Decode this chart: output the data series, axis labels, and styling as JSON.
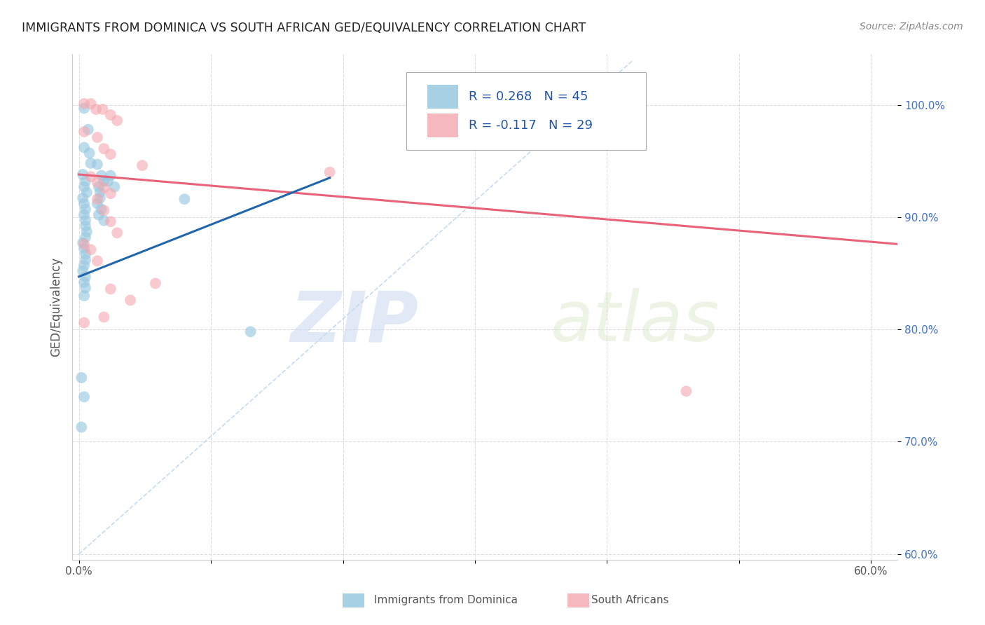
{
  "title": "IMMIGRANTS FROM DOMINICA VS SOUTH AFRICAN GED/EQUIVALENCY CORRELATION CHART",
  "source": "Source: ZipAtlas.com",
  "ylabel_label": "GED/Equivalency",
  "x_ticks": [
    0.0,
    0.1,
    0.2,
    0.3,
    0.4,
    0.5,
    0.6
  ],
  "x_tick_labels": [
    "0.0%",
    "",
    "",
    "",
    "",
    "",
    "60.0%"
  ],
  "y_ticks": [
    0.6,
    0.7,
    0.8,
    0.9,
    1.0
  ],
  "y_tick_labels": [
    "60.0%",
    "70.0%",
    "80.0%",
    "90.0%",
    "100.0%"
  ],
  "xlim": [
    -0.005,
    0.62
  ],
  "ylim": [
    0.595,
    1.045
  ],
  "blue_color": "#92c5de",
  "pink_color": "#f4a7b0",
  "blue_line_color": "#2166ac",
  "pink_line_color": "#e8637a",
  "diagonal_line_color": "#c0d8ee",
  "background_color": "#ffffff",
  "grid_color": "#dddddd",
  "watermark_zip": "ZIP",
  "watermark_atlas": "atlas",
  "blue_dots": [
    [
      0.004,
      0.997
    ],
    [
      0.007,
      0.978
    ],
    [
      0.004,
      0.962
    ],
    [
      0.008,
      0.957
    ],
    [
      0.009,
      0.948
    ],
    [
      0.003,
      0.938
    ],
    [
      0.005,
      0.932
    ],
    [
      0.004,
      0.927
    ],
    [
      0.006,
      0.922
    ],
    [
      0.003,
      0.917
    ],
    [
      0.004,
      0.912
    ],
    [
      0.005,
      0.907
    ],
    [
      0.004,
      0.902
    ],
    [
      0.005,
      0.897
    ],
    [
      0.005,
      0.892
    ],
    [
      0.006,
      0.887
    ],
    [
      0.005,
      0.882
    ],
    [
      0.003,
      0.877
    ],
    [
      0.004,
      0.872
    ],
    [
      0.005,
      0.867
    ],
    [
      0.005,
      0.862
    ],
    [
      0.004,
      0.857
    ],
    [
      0.003,
      0.852
    ],
    [
      0.005,
      0.847
    ],
    [
      0.004,
      0.842
    ],
    [
      0.005,
      0.837
    ],
    [
      0.004,
      0.83
    ],
    [
      0.014,
      0.947
    ],
    [
      0.017,
      0.937
    ],
    [
      0.019,
      0.932
    ],
    [
      0.015,
      0.927
    ],
    [
      0.016,
      0.922
    ],
    [
      0.016,
      0.917
    ],
    [
      0.014,
      0.912
    ],
    [
      0.017,
      0.907
    ],
    [
      0.015,
      0.902
    ],
    [
      0.019,
      0.897
    ],
    [
      0.024,
      0.937
    ],
    [
      0.022,
      0.932
    ],
    [
      0.027,
      0.927
    ],
    [
      0.08,
      0.916
    ],
    [
      0.13,
      0.798
    ],
    [
      0.002,
      0.757
    ],
    [
      0.004,
      0.74
    ],
    [
      0.002,
      0.713
    ]
  ],
  "pink_dots": [
    [
      0.004,
      1.001
    ],
    [
      0.009,
      1.001
    ],
    [
      0.013,
      0.996
    ],
    [
      0.018,
      0.996
    ],
    [
      0.024,
      0.991
    ],
    [
      0.029,
      0.986
    ],
    [
      0.004,
      0.976
    ],
    [
      0.014,
      0.971
    ],
    [
      0.019,
      0.961
    ],
    [
      0.024,
      0.956
    ],
    [
      0.048,
      0.946
    ],
    [
      0.009,
      0.936
    ],
    [
      0.014,
      0.931
    ],
    [
      0.019,
      0.926
    ],
    [
      0.024,
      0.921
    ],
    [
      0.014,
      0.916
    ],
    [
      0.019,
      0.906
    ],
    [
      0.024,
      0.896
    ],
    [
      0.029,
      0.886
    ],
    [
      0.004,
      0.876
    ],
    [
      0.009,
      0.871
    ],
    [
      0.014,
      0.861
    ],
    [
      0.058,
      0.841
    ],
    [
      0.024,
      0.836
    ],
    [
      0.039,
      0.826
    ],
    [
      0.019,
      0.811
    ],
    [
      0.004,
      0.806
    ],
    [
      0.46,
      0.745
    ],
    [
      0.19,
      0.94
    ]
  ],
  "blue_trendline_x": [
    0.0,
    0.19
  ],
  "blue_trendline_y": [
    0.847,
    0.935
  ],
  "pink_trendline_x": [
    0.0,
    0.62
  ],
  "pink_trendline_y": [
    0.938,
    0.876
  ]
}
